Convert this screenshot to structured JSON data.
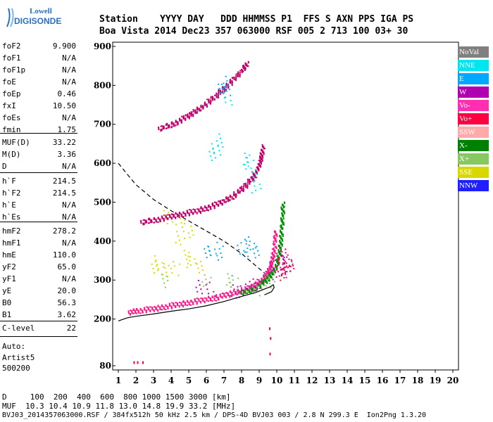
{
  "logo": {
    "line1": "Lowell",
    "line2": "DIGISONDE"
  },
  "header": {
    "row1": "Station    YYYY DAY   DDD HHMMSS P1  FFS S AXN PPS IGA PS",
    "row2": "Boa Vista 2014 Dec23 357 063000 RSF 005 2 713 100 03+ 30"
  },
  "params": [
    {
      "label": "foF2",
      "value": "9.900"
    },
    {
      "label": "foF1",
      "value": "N/A"
    },
    {
      "label": "foF1p",
      "value": "N/A"
    },
    {
      "label": "foE",
      "value": "N/A"
    },
    {
      "label": "foEp",
      "value": "0.46"
    },
    {
      "label": "fxI",
      "value": "10.50"
    },
    {
      "label": "foEs",
      "value": "N/A"
    },
    {
      "label": "fmin",
      "value": "1.75"
    },
    {
      "label": "MUF(D)",
      "value": "33.22"
    },
    {
      "label": "M(D)",
      "value": "3.36"
    },
    {
      "label": "D",
      "value": "N/A"
    },
    {
      "label": "h`F",
      "value": "214.5"
    },
    {
      "label": "h`F2",
      "value": "214.5"
    },
    {
      "label": "h`E",
      "value": "N/A"
    },
    {
      "label": "h`Es",
      "value": "N/A"
    },
    {
      "label": "hmF2",
      "value": "278.2"
    },
    {
      "label": "hmF1",
      "value": "N/A"
    },
    {
      "label": "hmE",
      "value": "110.0"
    },
    {
      "label": "yF2",
      "value": "65.0"
    },
    {
      "label": "yF1",
      "value": "N/A"
    },
    {
      "label": "yE",
      "value": "20.0"
    },
    {
      "label": "B0",
      "value": "56.3"
    },
    {
      "label": "B1",
      "value": "3.62"
    },
    {
      "label": "C-level",
      "value": "22"
    }
  ],
  "misc": {
    "auto": "Auto:",
    "artist": "Artist5",
    "code": "500200"
  },
  "footer": {
    "d_line": "D     100  200  400  600  800 1000 1500 3000 [km]",
    "muf_line": "MUF  10.3 10.4 10.9 11.8 13.0 14.8 19.9 33.2 [MHz]",
    "file_line": "BVJ03_2014357063000.RSF / 384fx512h 50 kHz 2.5 km / DPS-4D BVJ03 003 / 2.8 N 299.3 E  Ion2Png 1.3.20"
  },
  "legend": [
    {
      "label": "NoVal",
      "color": "#808080",
      "text_color": "#ffffff"
    },
    {
      "label": "NNE",
      "color": "#00e5ee",
      "text_color": "#ffffff"
    },
    {
      "label": "E",
      "color": "#00a8ff",
      "text_color": "#ffffff"
    },
    {
      "label": "W",
      "color": "#b000b0",
      "text_color": "#ffffff"
    },
    {
      "label": "Vo-",
      "color": "#ff2fb0",
      "text_color": "#ffffff"
    },
    {
      "label": "Vo+",
      "color": "#ff0040",
      "text_color": "#ffffff"
    },
    {
      "label": "SSW",
      "color": "#ffaaaa",
      "text_color": "#ffffff"
    },
    {
      "label": "X-",
      "color": "#008000",
      "text_color": "#ffffff"
    },
    {
      "label": "X+",
      "color": "#88c860",
      "text_color": "#ffffff"
    },
    {
      "label": "SSE",
      "color": "#d8d800",
      "text_color": "#ffffff"
    },
    {
      "label": "NNW",
      "color": "#2020ff",
      "text_color": "#ffffff"
    }
  ],
  "chart_data": {
    "type": "scatter",
    "xlim": [
      1,
      20
    ],
    "ylim": [
      80,
      900
    ],
    "x_ticks": [
      1,
      2,
      3,
      4,
      5,
      6,
      7,
      8,
      9,
      10,
      11,
      12,
      13,
      14,
      15,
      16,
      17,
      18,
      19,
      20
    ],
    "y_ticks": [
      80,
      200,
      300,
      400,
      500,
      600,
      700,
      800,
      900
    ],
    "grid": false,
    "traces": [
      {
        "name": "O",
        "color": "#ff1a8c",
        "points": [
          [
            1.6,
            218
          ],
          [
            2.0,
            222
          ],
          [
            2.5,
            225
          ],
          [
            3.0,
            228
          ],
          [
            3.5,
            232
          ],
          [
            4.0,
            236
          ],
          [
            4.5,
            240
          ],
          [
            5.0,
            244
          ],
          [
            5.5,
            248
          ],
          [
            6.0,
            252
          ],
          [
            6.5,
            256
          ],
          [
            7.0,
            262
          ],
          [
            7.5,
            268
          ],
          [
            8.0,
            275
          ],
          [
            8.5,
            283
          ],
          [
            9.0,
            295
          ],
          [
            9.3,
            308
          ],
          [
            9.5,
            322
          ],
          [
            9.65,
            340
          ],
          [
            9.75,
            360
          ],
          [
            9.85,
            390
          ],
          [
            9.9,
            430
          ]
        ]
      },
      {
        "name": "X",
        "color": "#009000",
        "points": [
          [
            8.0,
            268
          ],
          [
            8.5,
            276
          ],
          [
            9.0,
            288
          ],
          [
            9.4,
            302
          ],
          [
            9.7,
            318
          ],
          [
            9.95,
            340
          ],
          [
            10.1,
            370
          ],
          [
            10.2,
            400
          ],
          [
            10.25,
            430
          ],
          [
            10.3,
            470
          ],
          [
            10.32,
            500
          ]
        ]
      },
      {
        "name": "O 2-hop",
        "color": "#c0006a",
        "points": [
          [
            2.3,
            450
          ],
          [
            3.0,
            455
          ],
          [
            3.5,
            460
          ],
          [
            4.0,
            466
          ],
          [
            4.5,
            470
          ],
          [
            5.0,
            475
          ],
          [
            5.5,
            480
          ],
          [
            6.0,
            487
          ],
          [
            6.5,
            495
          ],
          [
            7.0,
            505
          ],
          [
            7.5,
            518
          ],
          [
            8.0,
            535
          ],
          [
            8.5,
            558
          ],
          [
            8.8,
            578
          ],
          [
            9.0,
            600
          ],
          [
            9.1,
            620
          ],
          [
            9.2,
            645
          ]
        ]
      },
      {
        "name": "O 3-hop",
        "color": "#c0006a",
        "points": [
          [
            3.3,
            690
          ],
          [
            4.0,
            700
          ],
          [
            4.5,
            712
          ],
          [
            5.0,
            725
          ],
          [
            5.5,
            740
          ],
          [
            6.0,
            755
          ],
          [
            6.5,
            775
          ],
          [
            7.0,
            795
          ],
          [
            7.5,
            815
          ],
          [
            8.0,
            840
          ],
          [
            8.3,
            860
          ]
        ]
      }
    ],
    "profile": {
      "name": "true height profile",
      "style": "solid",
      "color": "#000000",
      "points": [
        [
          1,
          195
        ],
        [
          1.5,
          203
        ],
        [
          2,
          207
        ],
        [
          3,
          213
        ],
        [
          4,
          220
        ],
        [
          5,
          226
        ],
        [
          6,
          234
        ],
        [
          7,
          245
        ],
        [
          8,
          258
        ],
        [
          8.8,
          268
        ],
        [
          9.3,
          277
        ],
        [
          9.6,
          282
        ],
        [
          9.8,
          288
        ],
        [
          9.85,
          281
        ],
        [
          9.7,
          270
        ],
        [
          9.3,
          262
        ]
      ]
    },
    "model": {
      "name": "dashed model",
      "style": "dashed",
      "color": "#000000",
      "points": [
        [
          1,
          600
        ],
        [
          1.5,
          572
        ],
        [
          2,
          545
        ],
        [
          3,
          507
        ],
        [
          4,
          478
        ],
        [
          5,
          452
        ],
        [
          6,
          426
        ],
        [
          7,
          400
        ],
        [
          8,
          368
        ],
        [
          8.8,
          337
        ],
        [
          9.3,
          318
        ],
        [
          9.7,
          305
        ]
      ]
    },
    "spread": [
      {
        "color": "#00e5ee",
        "points": [
          [
            6.3,
            620
          ],
          [
            6.5,
            640
          ],
          [
            6.7,
            660
          ],
          [
            7.2,
            770
          ],
          [
            8.2,
            612
          ],
          [
            8.4,
            600
          ],
          [
            8.6,
            575
          ],
          [
            8.8,
            540
          ]
        ]
      },
      {
        "color": "#00a8ff",
        "points": [
          [
            6.0,
            375
          ],
          [
            6.3,
            380
          ],
          [
            6.7,
            370
          ],
          [
            8.0,
            385
          ],
          [
            8.2,
            395
          ],
          [
            8.5,
            380
          ],
          [
            8.7,
            372
          ],
          [
            6.8,
            795
          ],
          [
            7.0,
            810
          ],
          [
            7.1,
            785
          ]
        ]
      },
      {
        "color": "#d8d800",
        "points": [
          [
            3.0,
            340
          ],
          [
            3.3,
            350
          ],
          [
            3.6,
            325
          ],
          [
            4.2,
            330
          ],
          [
            4.8,
            360
          ],
          [
            5.1,
            345
          ],
          [
            5.5,
            338
          ],
          [
            4.5,
            410
          ],
          [
            5.0,
            430
          ],
          [
            3.8,
            465
          ],
          [
            4.5,
            440
          ]
        ]
      },
      {
        "color": "#b000b0",
        "points": [
          [
            5.5,
            285
          ],
          [
            6.2,
            280
          ],
          [
            7.5,
            275
          ],
          [
            8.0,
            272
          ],
          [
            8.5,
            285
          ],
          [
            9.0,
            290
          ],
          [
            9.5,
            330
          ],
          [
            10.0,
            320
          ],
          [
            10.3,
            340
          ],
          [
            10.5,
            355
          ],
          [
            10.2,
            370
          ],
          [
            10.4,
            330
          ]
        ]
      },
      {
        "color": "#ff0040",
        "points": [
          [
            10.0,
            345
          ],
          [
            10.2,
            365
          ],
          [
            10.4,
            350
          ],
          [
            10.6,
            335
          ],
          [
            10.1,
            315
          ],
          [
            10.5,
            322
          ],
          [
            10.7,
            340
          ]
        ]
      },
      {
        "color": "#88c860",
        "points": [
          [
            7.2,
            300
          ],
          [
            7.5,
            295
          ],
          [
            3.5,
            300
          ],
          [
            6.0,
            298
          ],
          [
            8.9,
            280
          ],
          [
            9.6,
            300
          ]
        ]
      }
    ],
    "near_bottom": [
      {
        "color": "#ff0040",
        "points": [
          [
            1.9,
            88
          ],
          [
            2.1,
            88
          ],
          [
            2.4,
            88
          ],
          [
            9.6,
            175
          ],
          [
            9.65,
            150
          ],
          [
            9.62,
            110
          ]
        ]
      }
    ]
  }
}
